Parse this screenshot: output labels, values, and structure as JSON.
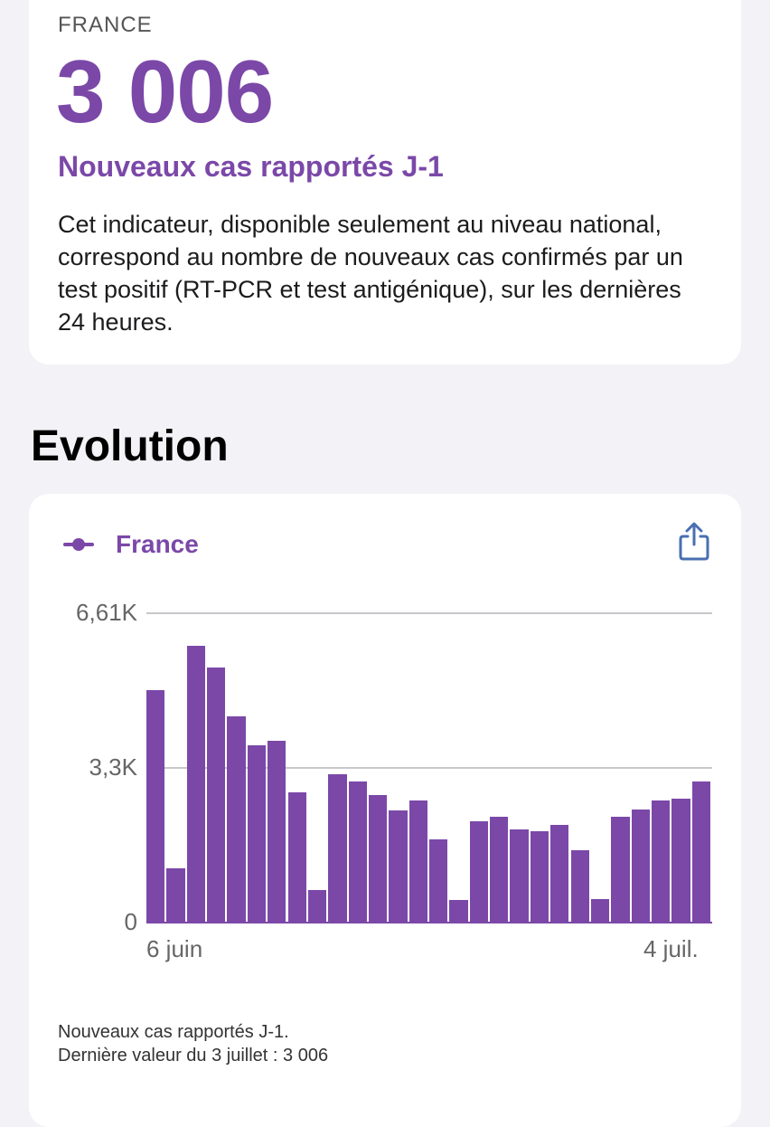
{
  "summary": {
    "region": "FRANCE",
    "value": "3 006",
    "title": "Nouveaux cas rapportés J-1",
    "description": "Cet indicateur, disponible seulement au niveau national, correspond au nombre de nouveaux cas confirmés par un test positif (RT-PCR et test antigénique), sur les dernières 24 heures."
  },
  "section": {
    "title": "Evolution"
  },
  "legend": {
    "label": "France",
    "share_icon": "share-icon"
  },
  "colors": {
    "accent": "#7b48a8",
    "background": "#f2f2f7",
    "card": "#ffffff"
  },
  "chart_data": {
    "type": "bar",
    "series": [
      {
        "name": "France",
        "values": [
          4970,
          1150,
          5920,
          5460,
          4400,
          3790,
          3890,
          2790,
          690,
          3170,
          3010,
          2730,
          2390,
          2600,
          1780,
          490,
          2160,
          2270,
          1990,
          1950,
          2090,
          1540,
          510,
          2260,
          2410,
          2610,
          2640,
          3006
        ]
      }
    ],
    "x_labels": {
      "first": "6 juin",
      "last": "4 juil."
    },
    "y_ticks": [
      "6,61K",
      "3,3K",
      "0"
    ],
    "ylim": [
      0,
      6610
    ],
    "grid": true
  },
  "footnote": {
    "line1": "Nouveaux cas rapportés J-1.",
    "line2": "Dernière valeur du 3 juillet : 3 006"
  }
}
